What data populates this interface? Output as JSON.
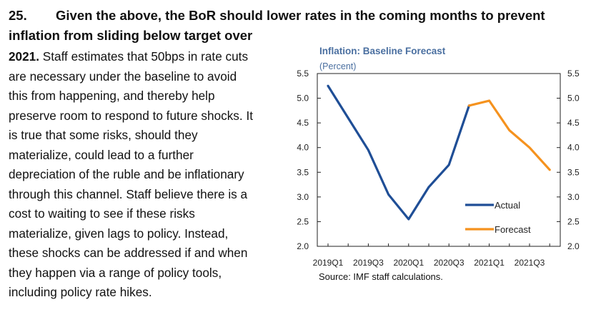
{
  "paragraph": {
    "number": "25.",
    "heading_line1": "Given the above, the BoR should lower rates in the coming months to prevent",
    "heading_line2": "inflation from sliding below target over",
    "lead_in": "2021.",
    "lines": [
      " Staff estimates that 50bps in rate cuts",
      "are necessary under the baseline to avoid",
      "this from happening, and thereby help",
      "preserve room to respond to future shocks. It",
      "is true that some risks, should they",
      "materialize, could lead to a further",
      "depreciation of the ruble and be inflationary",
      "through this channel. Staff believe there is a",
      "cost to waiting to see if these risks",
      "materialize, given lags to policy. Instead,",
      "these shocks can be addressed if and when",
      "they happen via a range of policy tools,",
      "including policy rate hikes."
    ]
  },
  "chart_data": {
    "type": "line",
    "title": "Inflation: Baseline Forecast",
    "subtitle": "(Percent)",
    "source": "Source: IMF staff calculations.",
    "x": [
      "2019Q1",
      "2019Q2",
      "2019Q3",
      "2019Q4",
      "2020Q1",
      "2020Q2",
      "2020Q3",
      "2020Q4",
      "2021Q1",
      "2021Q2",
      "2021Q3",
      "2021Q4"
    ],
    "x_tick_labels": [
      "2019Q1",
      "2019Q3",
      "2020Q1",
      "2020Q3",
      "2021Q1",
      "2021Q3"
    ],
    "y_ticks": [
      "2.0",
      "2.5",
      "3.0",
      "3.5",
      "4.0",
      "4.5",
      "5.0",
      "5.5"
    ],
    "ylim": [
      2.0,
      5.5
    ],
    "series": [
      {
        "name": "Actual",
        "color": "#1f4e96",
        "x": [
          "2019Q1",
          "2019Q2",
          "2019Q3",
          "2019Q4",
          "2020Q1",
          "2020Q2",
          "2020Q3",
          "2020Q4"
        ],
        "values": [
          5.25,
          4.6,
          3.95,
          3.05,
          2.55,
          3.2,
          3.65,
          4.85
        ]
      },
      {
        "name": "Forecast",
        "color": "#f5921e",
        "x": [
          "2020Q4",
          "2021Q1",
          "2021Q2",
          "2021Q3",
          "2021Q4"
        ],
        "values": [
          4.85,
          4.95,
          4.35,
          4.0,
          3.55
        ]
      }
    ],
    "legend_position": "right",
    "grid": false
  }
}
